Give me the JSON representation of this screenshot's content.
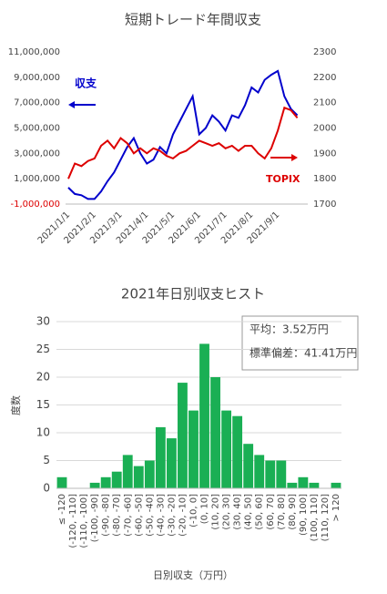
{
  "chart_data": [
    {
      "type": "line",
      "title": "短期トレード年間収支",
      "categories": [
        "2021/1/1",
        null,
        null,
        null,
        "2021/2/1",
        null,
        null,
        null,
        "2021/3/1",
        null,
        null,
        null,
        "2021/4/1",
        null,
        null,
        null,
        "2021/5/1",
        null,
        null,
        null,
        "2021/6/1",
        null,
        null,
        null,
        "2021/7/1",
        null,
        null,
        null,
        "2021/8/1",
        null,
        null,
        null,
        "2021/9/1",
        null,
        null,
        null
      ],
      "series": [
        {
          "name": "収支",
          "color": "#0000cc",
          "axis": "y",
          "values": [
            300000,
            -200000,
            -300000,
            -600000,
            -600000,
            0,
            800000,
            1500000,
            2500000,
            3500000,
            4200000,
            3000000,
            2200000,
            2500000,
            3500000,
            3000000,
            4500000,
            5500000,
            6500000,
            7500000,
            4500000,
            5000000,
            6000000,
            5500000,
            4800000,
            6000000,
            5800000,
            6800000,
            8200000,
            7800000,
            8800000,
            9200000,
            9500000,
            7500000,
            6500000,
            6000000
          ]
        },
        {
          "name": "TOPIX",
          "color": "#dd0000",
          "axis": "y2",
          "values": [
            1800,
            1860,
            1850,
            1870,
            1880,
            1930,
            1950,
            1920,
            1960,
            1940,
            1900,
            1920,
            1900,
            1920,
            1910,
            1890,
            1880,
            1900,
            1910,
            1930,
            1950,
            1940,
            1930,
            1940,
            1920,
            1930,
            1910,
            1930,
            1930,
            1900,
            1880,
            1920,
            1990,
            2080,
            2070,
            2040
          ]
        }
      ],
      "ylim": [
        -1000000,
        11000000
      ],
      "yticks": [
        {
          "value": -1000000,
          "label": "-1,000,000"
        },
        {
          "value": 1000000,
          "label": "1,000,000"
        },
        {
          "value": 3000000,
          "label": "3,000,000"
        },
        {
          "value": 5000000,
          "label": "5,000,000"
        },
        {
          "value": 7000000,
          "label": "7,000,000"
        },
        {
          "value": 9000000,
          "label": "9,000,000"
        },
        {
          "value": 11000000,
          "label": "11,000,000"
        }
      ],
      "y2lim": [
        1700,
        2300
      ],
      "y2ticks": [
        1700,
        1800,
        1900,
        2000,
        2100,
        2200,
        2300
      ],
      "grid": false
    },
    {
      "type": "bar",
      "title": "2021年日別収支ヒスト",
      "color": "#1aaf54",
      "categories": [
        "≤ -120",
        "(-120, -110]",
        "(-110, -100]",
        "(-100, -90]",
        "(-90, -80]",
        "(-80, -70]",
        "(-70, -60]",
        "(-60, -50]",
        "(-50, -40]",
        "(-40, -30]",
        "(-30, -20]",
        "(-20, -10]",
        "(-10, 0]",
        "(0, 10]",
        "(10, 20]",
        "(20, 30]",
        "(30, 40]",
        "(40, 50]",
        "(50, 60]",
        "(60, 70]",
        "(70, 80]",
        "(80, 90]",
        "(90, 100]",
        "(100, 110]",
        "(110, 120]",
        "> 120"
      ],
      "values": [
        2,
        0,
        0,
        1,
        2,
        3,
        6,
        4,
        5,
        11,
        9,
        19,
        14,
        26,
        20,
        14,
        13,
        8,
        6,
        5,
        5,
        1,
        2,
        1,
        0,
        1
      ],
      "ylim": [
        0,
        30
      ],
      "yticks": [
        0,
        5,
        10,
        15,
        20,
        25,
        30
      ],
      "grid": true,
      "y_label": "度数",
      "x_label": "日別収支（万円）",
      "annotations": [
        "平均：3.52万円",
        "標準偏差：41.41万円"
      ]
    }
  ]
}
